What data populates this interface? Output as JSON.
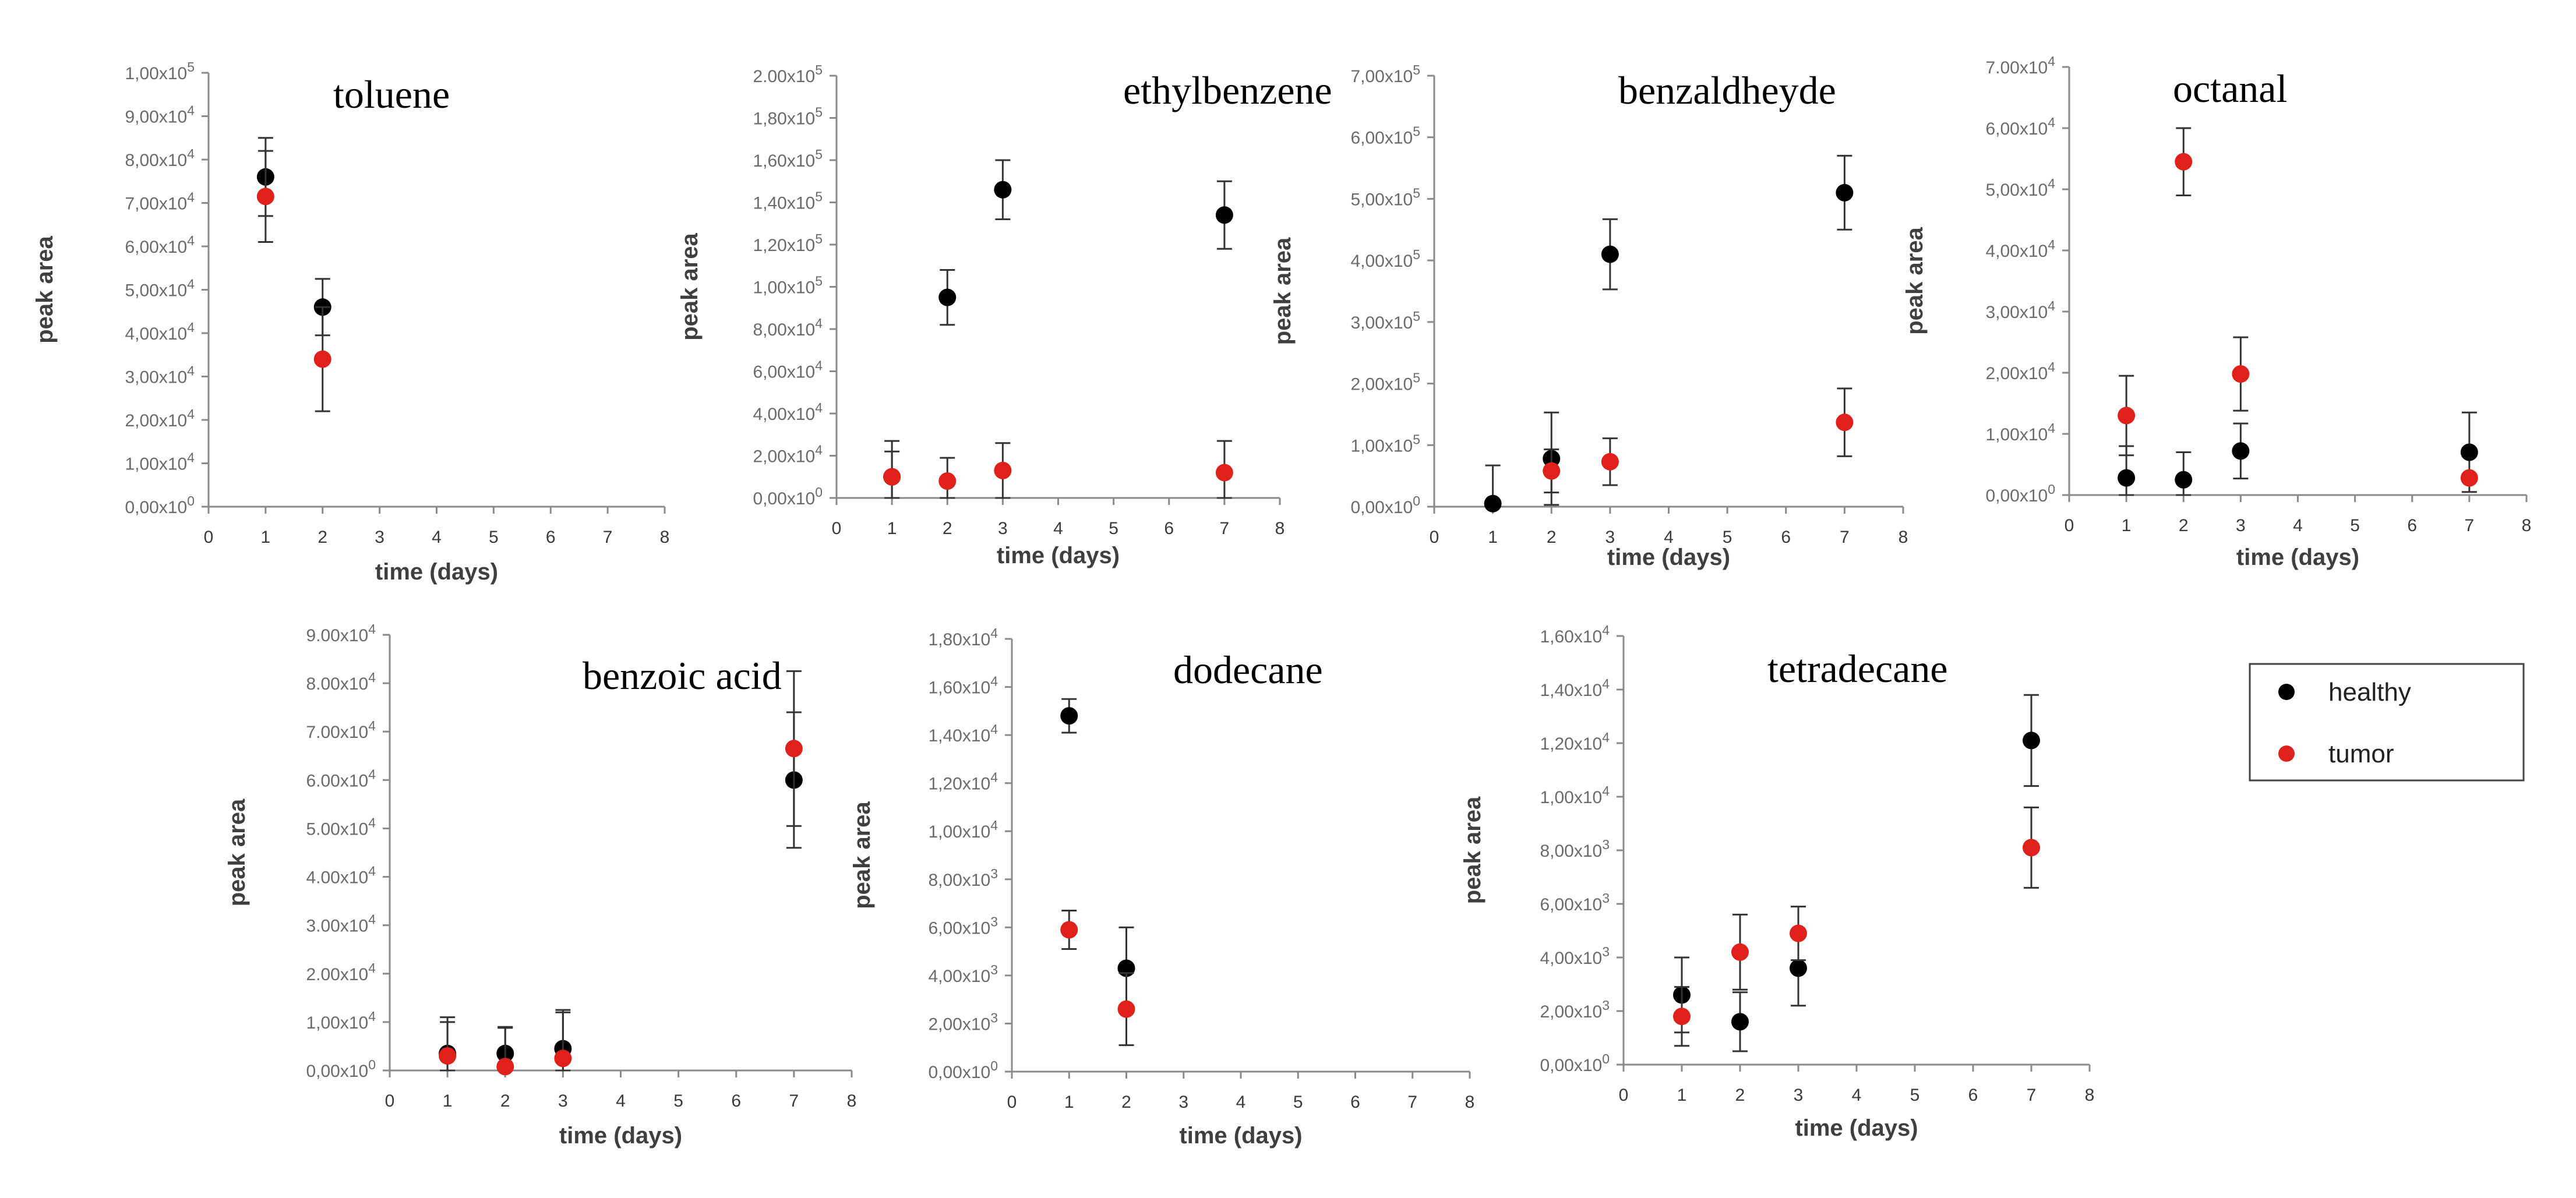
{
  "chart_data": [
    {
      "type": "scatter",
      "title": "toluene",
      "xlabel": "time (days)",
      "ylabel": "peak area",
      "xlim": [
        0,
        8
      ],
      "ylim": [
        0,
        100000
      ],
      "x_ticks": [
        "0",
        "1",
        "2",
        "3",
        "4",
        "5",
        "6",
        "7",
        "8"
      ],
      "y_ticks": [
        {
          "value": 0,
          "mantissa": "0,00",
          "exponent": "0"
        },
        {
          "value": 10000,
          "mantissa": "1,00",
          "exponent": "4"
        },
        {
          "value": 20000,
          "mantissa": "2,00",
          "exponent": "4"
        },
        {
          "value": 30000,
          "mantissa": "3,00",
          "exponent": "4"
        },
        {
          "value": 40000,
          "mantissa": "4,00",
          "exponent": "4"
        },
        {
          "value": 50000,
          "mantissa": "5,00",
          "exponent": "4"
        },
        {
          "value": 60000,
          "mantissa": "6,00",
          "exponent": "4"
        },
        {
          "value": 70000,
          "mantissa": "7,00",
          "exponent": "4"
        },
        {
          "value": 80000,
          "mantissa": "8,00",
          "exponent": "4"
        },
        {
          "value": 90000,
          "mantissa": "9,00",
          "exponent": "4"
        },
        {
          "value": 100000,
          "mantissa": "1,00",
          "exponent": "5"
        }
      ],
      "series": [
        {
          "name": "healthy",
          "points": [
            {
              "x": 1,
              "y": 76000,
              "err": 9000
            },
            {
              "x": 2,
              "y": 46000,
              "err": 6500
            }
          ]
        },
        {
          "name": "tumor",
          "points": [
            {
              "x": 1,
              "y": 71500,
              "err": 10500
            },
            {
              "x": 2,
              "y": 34000,
              "err": 12000
            }
          ]
        }
      ]
    },
    {
      "type": "scatter",
      "title": "ethylbenzene",
      "xlabel": "time (days)",
      "ylabel": "peak area",
      "xlim": [
        0,
        8
      ],
      "ylim": [
        0,
        200000
      ],
      "x_ticks": [
        "0",
        "1",
        "2",
        "3",
        "4",
        "5",
        "6",
        "7",
        "8"
      ],
      "y_ticks": [
        {
          "value": 0,
          "mantissa": "0,00",
          "exponent": "0"
        },
        {
          "value": 20000,
          "mantissa": "2,00",
          "exponent": "4"
        },
        {
          "value": 40000,
          "mantissa": "4,00",
          "exponent": "4"
        },
        {
          "value": 60000,
          "mantissa": "6,00",
          "exponent": "4"
        },
        {
          "value": 80000,
          "mantissa": "8,00",
          "exponent": "4"
        },
        {
          "value": 100000,
          "mantissa": "1,00",
          "exponent": "5"
        },
        {
          "value": 120000,
          "mantissa": "1,20",
          "exponent": "5"
        },
        {
          "value": 140000,
          "mantissa": "1,40",
          "exponent": "5"
        },
        {
          "value": 160000,
          "mantissa": "1,60",
          "exponent": "5"
        },
        {
          "value": 180000,
          "mantissa": "1,80",
          "exponent": "5"
        },
        {
          "value": 200000,
          "mantissa": "2.00",
          "exponent": "5"
        }
      ],
      "series": [
        {
          "name": "healthy",
          "points": [
            {
              "x": 1,
              "y": 10000,
              "err": 17000
            },
            {
              "x": 2,
              "y": 95000,
              "err": 13000
            },
            {
              "x": 3,
              "y": 146000,
              "err": 14000
            },
            {
              "x": 7,
              "y": 134000,
              "err": 16000
            }
          ]
        },
        {
          "name": "tumor",
          "points": [
            {
              "x": 1,
              "y": 10000,
              "err": 12000
            },
            {
              "x": 2,
              "y": 8000,
              "err": 11000
            },
            {
              "x": 3,
              "y": 13000,
              "err": 13000
            },
            {
              "x": 7,
              "y": 12000,
              "err": 15000
            }
          ]
        }
      ]
    },
    {
      "type": "scatter",
      "title": "benzaldheyde",
      "xlabel": "time (days)",
      "ylabel": "peak area",
      "xlim": [
        0,
        8
      ],
      "ylim": [
        0,
        700000
      ],
      "x_ticks": [
        "0",
        "1",
        "2",
        "3",
        "4",
        "5",
        "6",
        "7",
        "8"
      ],
      "y_ticks": [
        {
          "value": 0,
          "mantissa": "0,00",
          "exponent": "0"
        },
        {
          "value": 100000,
          "mantissa": "1,00",
          "exponent": "5"
        },
        {
          "value": 200000,
          "mantissa": "2,00",
          "exponent": "5"
        },
        {
          "value": 300000,
          "mantissa": "3,00",
          "exponent": "5"
        },
        {
          "value": 400000,
          "mantissa": "4,00",
          "exponent": "5"
        },
        {
          "value": 500000,
          "mantissa": "5,00",
          "exponent": "5"
        },
        {
          "value": 600000,
          "mantissa": "6,00",
          "exponent": "5"
        },
        {
          "value": 700000,
          "mantissa": "7,00",
          "exponent": "5"
        }
      ],
      "series": [
        {
          "name": "healthy",
          "points": [
            {
              "x": 1,
              "y": 5000,
              "err": 62000
            },
            {
              "x": 2,
              "y": 78000,
              "err": 75000
            },
            {
              "x": 3,
              "y": 410000,
              "err": 57000
            },
            {
              "x": 7,
              "y": 510000,
              "err": 60000
            }
          ]
        },
        {
          "name": "tumor",
          "points": [
            {
              "x": 2,
              "y": 58000,
              "err": 35000
            },
            {
              "x": 3,
              "y": 73000,
              "err": 38000
            },
            {
              "x": 7,
              "y": 137000,
              "err": 55000
            }
          ]
        }
      ]
    },
    {
      "type": "scatter",
      "title": "octanal",
      "xlabel": "time (days)",
      "ylabel": "peak area",
      "xlim": [
        0,
        8
      ],
      "ylim": [
        0,
        70000
      ],
      "x_ticks": [
        "0",
        "1",
        "2",
        "3",
        "4",
        "5",
        "6",
        "7",
        "8"
      ],
      "y_ticks": [
        {
          "value": 0,
          "mantissa": "0,00",
          "exponent": "0"
        },
        {
          "value": 10000,
          "mantissa": "1,00",
          "exponent": "4"
        },
        {
          "value": 20000,
          "mantissa": "2,00",
          "exponent": "4"
        },
        {
          "value": 30000,
          "mantissa": "3,00",
          "exponent": "4"
        },
        {
          "value": 40000,
          "mantissa": "4,00",
          "exponent": "4"
        },
        {
          "value": 50000,
          "mantissa": "5,00",
          "exponent": "4"
        },
        {
          "value": 60000,
          "mantissa": "6,00",
          "exponent": "4"
        },
        {
          "value": 70000,
          "mantissa": "7.00",
          "exponent": "4"
        }
      ],
      "series": [
        {
          "name": "healthy",
          "points": [
            {
              "x": 1,
              "y": 2800,
              "err": 5200
            },
            {
              "x": 2,
              "y": 2500,
              "err": 4500
            },
            {
              "x": 3,
              "y": 7200,
              "err": 4500
            },
            {
              "x": 7,
              "y": 7000,
              "err": 6500
            }
          ]
        },
        {
          "name": "tumor",
          "points": [
            {
              "x": 1,
              "y": 13000,
              "err": 6500
            },
            {
              "x": 2,
              "y": 54500,
              "err": 5500
            },
            {
              "x": 3,
              "y": 19800,
              "err": 6000
            },
            {
              "x": 7,
              "y": 2800,
              "err": 0
            }
          ]
        }
      ]
    },
    {
      "type": "scatter",
      "title": "benzoic acid",
      "xlabel": "time (days)",
      "ylabel": "peak area",
      "xlim": [
        0,
        8
      ],
      "ylim": [
        0,
        90000
      ],
      "x_ticks": [
        "0",
        "1",
        "2",
        "3",
        "4",
        "5",
        "6",
        "7",
        "8"
      ],
      "y_ticks": [
        {
          "value": 0,
          "mantissa": "0,00",
          "exponent": "0"
        },
        {
          "value": 10000,
          "mantissa": "1,00",
          "exponent": "4"
        },
        {
          "value": 20000,
          "mantissa": "2.00",
          "exponent": "4"
        },
        {
          "value": 30000,
          "mantissa": "3.00",
          "exponent": "4"
        },
        {
          "value": 40000,
          "mantissa": "4.00",
          "exponent": "4"
        },
        {
          "value": 50000,
          "mantissa": "5.00",
          "exponent": "4"
        },
        {
          "value": 60000,
          "mantissa": "6.00",
          "exponent": "4"
        },
        {
          "value": 70000,
          "mantissa": "7.00",
          "exponent": "4"
        },
        {
          "value": 80000,
          "mantissa": "8.00",
          "exponent": "4"
        },
        {
          "value": 90000,
          "mantissa": "9.00",
          "exponent": "4"
        }
      ],
      "series": [
        {
          "name": "healthy",
          "points": [
            {
              "x": 1,
              "y": 3500,
              "err": 7500
            },
            {
              "x": 2,
              "y": 3500,
              "err": 5500
            },
            {
              "x": 3,
              "y": 4500,
              "err": 7500
            },
            {
              "x": 7,
              "y": 60000,
              "err": 14000
            }
          ]
        },
        {
          "name": "tumor",
          "points": [
            {
              "x": 1,
              "y": 3000,
              "err": 7000
            },
            {
              "x": 2,
              "y": 800,
              "err": 8000
            },
            {
              "x": 3,
              "y": 2500,
              "err": 10000
            },
            {
              "x": 7,
              "y": 66500,
              "err": 16000
            }
          ]
        }
      ]
    },
    {
      "type": "scatter",
      "title": "dodecane",
      "xlabel": "time (days)",
      "ylabel": "peak area",
      "xlim": [
        0,
        8
      ],
      "ylim": [
        0,
        18000
      ],
      "x_ticks": [
        "0",
        "1",
        "2",
        "3",
        "4",
        "5",
        "6",
        "7",
        "8"
      ],
      "y_ticks": [
        {
          "value": 0,
          "mantissa": "0,00",
          "exponent": "0"
        },
        {
          "value": 2000,
          "mantissa": "2,00",
          "exponent": "3"
        },
        {
          "value": 4000,
          "mantissa": "4,00",
          "exponent": "3"
        },
        {
          "value": 6000,
          "mantissa": "6,00",
          "exponent": "3"
        },
        {
          "value": 8000,
          "mantissa": "8,00",
          "exponent": "3"
        },
        {
          "value": 10000,
          "mantissa": "1,00",
          "exponent": "4"
        },
        {
          "value": 12000,
          "mantissa": "1,20",
          "exponent": "4"
        },
        {
          "value": 14000,
          "mantissa": "1,40",
          "exponent": "4"
        },
        {
          "value": 16000,
          "mantissa": "1,60",
          "exponent": "4"
        },
        {
          "value": 18000,
          "mantissa": "1,80",
          "exponent": "4"
        }
      ],
      "series": [
        {
          "name": "healthy",
          "points": [
            {
              "x": 1,
              "y": 14800,
              "err": 700
            },
            {
              "x": 2,
              "y": 4300,
              "err": 1700
            }
          ]
        },
        {
          "name": "tumor",
          "points": [
            {
              "x": 1,
              "y": 5900,
              "err": 800
            },
            {
              "x": 2,
              "y": 2600,
              "err": 1500
            }
          ]
        }
      ]
    },
    {
      "type": "scatter",
      "title": "tetradecane",
      "xlabel": "time (days)",
      "ylabel": "peak area",
      "xlim": [
        0,
        8
      ],
      "ylim": [
        0,
        16000
      ],
      "x_ticks": [
        "0",
        "1",
        "2",
        "3",
        "4",
        "5",
        "6",
        "7",
        "8"
      ],
      "y_ticks": [
        {
          "value": 0,
          "mantissa": "0,00",
          "exponent": "0"
        },
        {
          "value": 2000,
          "mantissa": "2,00",
          "exponent": "3"
        },
        {
          "value": 4000,
          "mantissa": "4,00",
          "exponent": "3"
        },
        {
          "value": 6000,
          "mantissa": "6,00",
          "exponent": "3"
        },
        {
          "value": 8000,
          "mantissa": "8,00",
          "exponent": "3"
        },
        {
          "value": 10000,
          "mantissa": "1,00",
          "exponent": "4"
        },
        {
          "value": 12000,
          "mantissa": "1,20",
          "exponent": "4"
        },
        {
          "value": 14000,
          "mantissa": "1,40",
          "exponent": "4"
        },
        {
          "value": 16000,
          "mantissa": "1,60",
          "exponent": "4"
        }
      ],
      "series": [
        {
          "name": "healthy",
          "points": [
            {
              "x": 1,
              "y": 2600,
              "err": 1400
            },
            {
              "x": 2,
              "y": 1600,
              "err": 1100
            },
            {
              "x": 3,
              "y": 3600,
              "err": 1400
            },
            {
              "x": 7,
              "y": 12100,
              "err": 1700
            }
          ]
        },
        {
          "name": "tumor",
          "points": [
            {
              "x": 1,
              "y": 1800,
              "err": 1100
            },
            {
              "x": 2,
              "y": 4200,
              "err": 1400
            },
            {
              "x": 3,
              "y": 4900,
              "err": 1000
            },
            {
              "x": 7,
              "y": 8100,
              "err": 1500
            }
          ]
        }
      ]
    }
  ],
  "legend": {
    "entries": [
      {
        "name": "healthy",
        "label": "healthy",
        "color": "#000000"
      },
      {
        "name": "tumor",
        "label": "tumor",
        "color": "#e0201b"
      }
    ]
  },
  "colors": {
    "healthy": "#000000",
    "tumor": "#e0201b",
    "axis": "#8a8a8a",
    "error_bar": "#333333"
  }
}
